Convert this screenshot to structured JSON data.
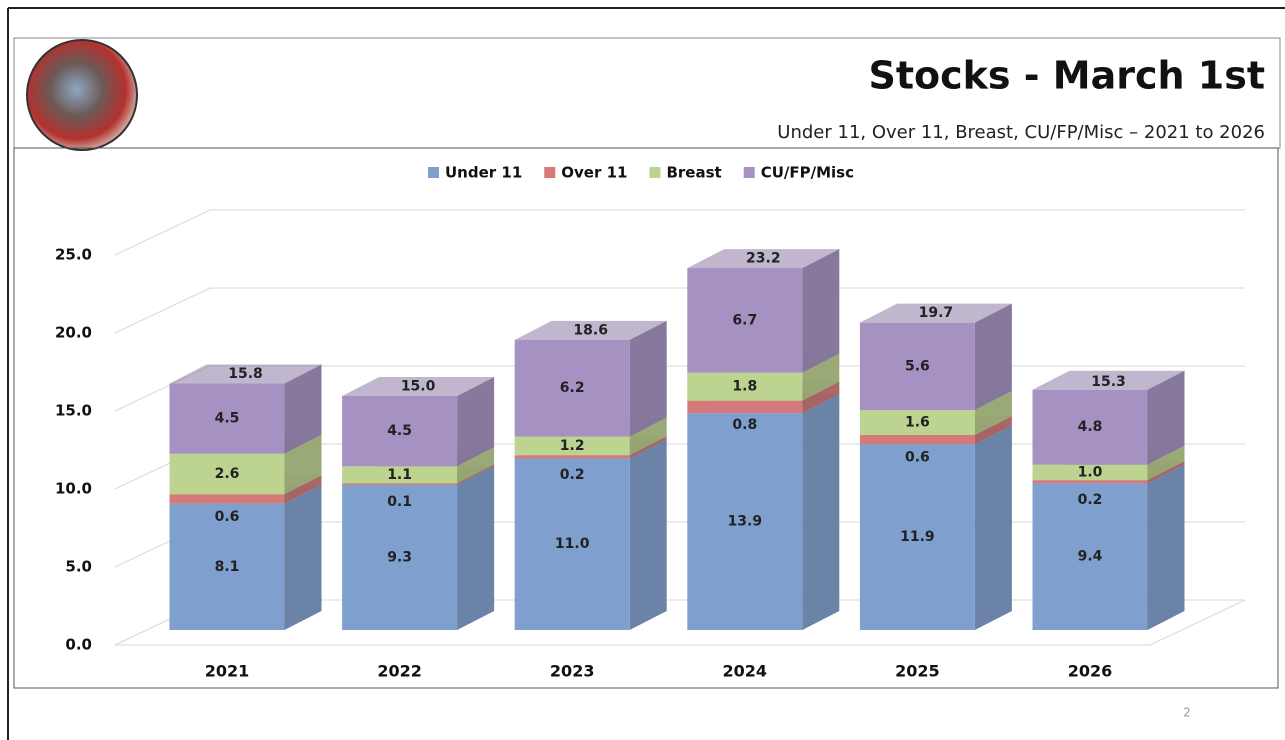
{
  "slide_number": "2",
  "chart_data": {
    "type": "bar",
    "stacked": true,
    "title": "Stocks - March 1st",
    "subtitle": "Under 11, Over 11, Breast, CU/FP/Misc – 2021 to 2026",
    "categories": [
      "2021",
      "2022",
      "2023",
      "2024",
      "2025",
      "2026"
    ],
    "series": [
      {
        "name": "Under 11",
        "color": "#7f9fcf",
        "values": [
          8.1,
          9.3,
          11,
          13.9,
          11.9,
          9.4
        ],
        "value_labels": [
          "8.1",
          "9.3",
          "11.0",
          "13.9",
          "11.9",
          "9.4"
        ]
      },
      {
        "name": "Over 11",
        "color": "#d47a7a",
        "values": [
          0.6,
          0.1,
          0.2,
          0.8,
          0.6,
          0.2
        ],
        "value_labels": [
          "0.6",
          "0.1",
          "0.2",
          "0.8",
          "0.6",
          "0.2"
        ]
      },
      {
        "name": "Breast",
        "color": "#bcd48f",
        "values": [
          2.6,
          1.1,
          1.2,
          1.8,
          1.6,
          1
        ],
        "value_labels": [
          "2.6",
          "1.1",
          "1.2",
          "1.8",
          "1.6",
          "1.0"
        ]
      },
      {
        "name": "CU/FP/Misc",
        "color": "#a592c3",
        "values": [
          4.5,
          4.5,
          6.2,
          6.7,
          5.6,
          4.8
        ],
        "value_labels": [
          "4.5",
          "4.5",
          "6.2",
          "6.7",
          "5.6",
          "4.8"
        ]
      }
    ],
    "totals": {
      "values": [
        15.8,
        15,
        18.6,
        23.2,
        19.7,
        15.3
      ],
      "value_labels": [
        "15.8",
        "15.0",
        "18.6",
        "23.2",
        "19.7",
        "15.3"
      ]
    },
    "ylim": [
      0,
      25
    ],
    "yticks": [
      {
        "value": 0,
        "label": "0.0"
      },
      {
        "value": 5,
        "label": "5.0"
      },
      {
        "value": 10,
        "label": "10.0"
      },
      {
        "value": 15,
        "label": "15.0"
      },
      {
        "value": 20,
        "label": "20.0"
      },
      {
        "value": 25,
        "label": "25.0"
      }
    ],
    "grid": true,
    "legend": "top"
  }
}
